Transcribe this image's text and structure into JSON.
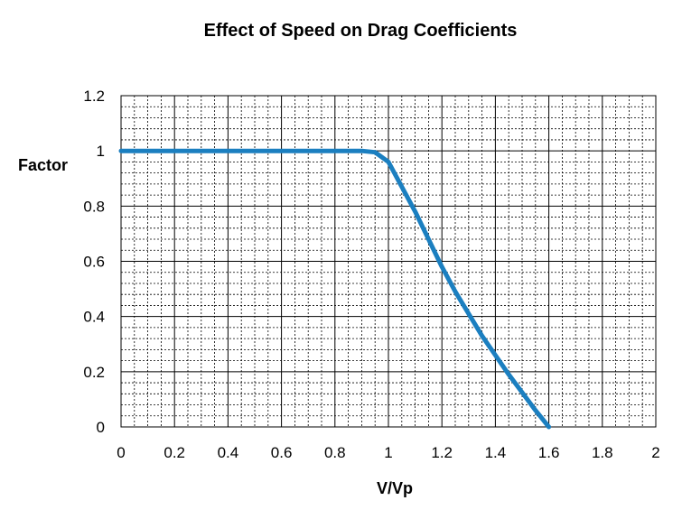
{
  "chart_data": {
    "type": "line",
    "title": "Effect of Speed on Drag Coefficients",
    "xlabel": "V/Vp",
    "ylabel": "Factor",
    "xlim": [
      0,
      2
    ],
    "ylim": [
      0,
      1.2
    ],
    "x_ticks": [
      "0",
      "0.2",
      "0.4",
      "0.6",
      "0.8",
      "1",
      "1.2",
      "1.4",
      "1.6",
      "1.8",
      "2"
    ],
    "y_ticks": [
      "0",
      "0.2",
      "0.4",
      "0.6",
      "0.8",
      "1",
      "1.2"
    ],
    "grid": true,
    "legend": "none",
    "series": [
      {
        "color": "#1B7FC0",
        "x": [
          0,
          0.2,
          0.4,
          0.6,
          0.8,
          0.9,
          0.95,
          1.0,
          1.05,
          1.1,
          1.15,
          1.2,
          1.25,
          1.3,
          1.35,
          1.4,
          1.45,
          1.5,
          1.55,
          1.6
        ],
        "y": [
          1,
          1,
          1,
          1,
          1,
          1,
          0.995,
          0.96,
          0.87,
          0.78,
          0.68,
          0.58,
          0.49,
          0.41,
          0.33,
          0.26,
          0.19,
          0.125,
          0.06,
          0
        ]
      }
    ]
  }
}
